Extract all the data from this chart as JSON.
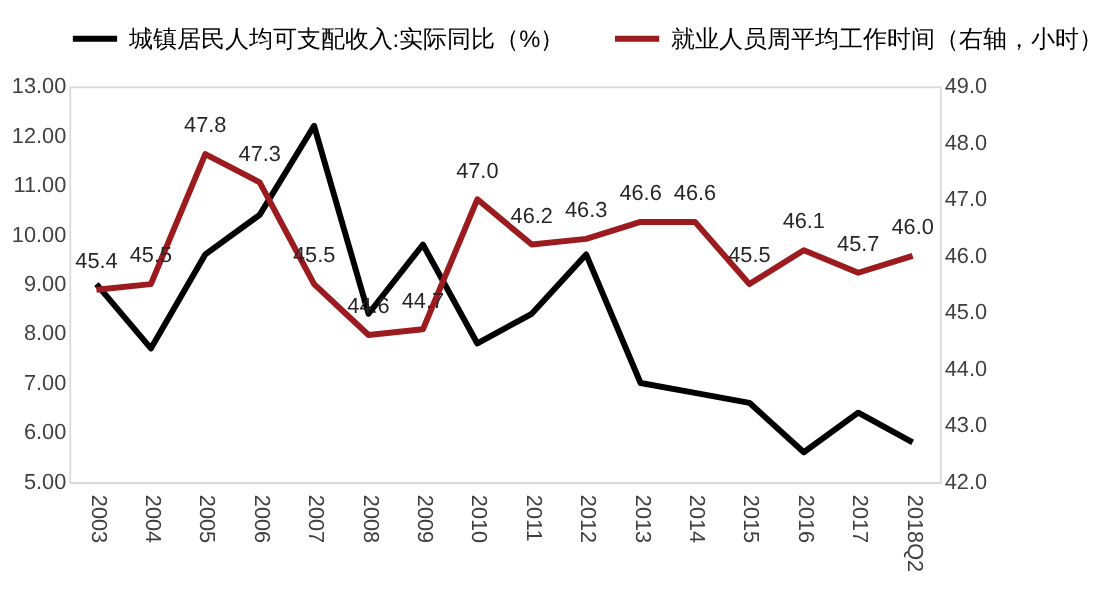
{
  "chart_data": {
    "type": "line",
    "categories": [
      "2003",
      "2004",
      "2005",
      "2006",
      "2007",
      "2008",
      "2009",
      "2010",
      "2011",
      "2012",
      "2013",
      "2014",
      "2015",
      "2016",
      "2017",
      "2018Q2"
    ],
    "series": [
      {
        "name": "城镇居民人均可支配收入:实际同比（%）",
        "color": "#000000",
        "values": [
          9.0,
          7.7,
          9.6,
          10.4,
          12.2,
          8.4,
          9.8,
          7.8,
          8.4,
          9.6,
          7.0,
          6.8,
          6.6,
          5.6,
          6.4,
          5.8
        ]
      },
      {
        "name": "就业人员周平均工作时间（右轴，小时）",
        "color": "#9b1b1e",
        "axis": "y2",
        "values": [
          45.4,
          45.5,
          47.8,
          47.3,
          45.5,
          44.6,
          44.7,
          47.0,
          46.2,
          46.3,
          46.6,
          46.6,
          45.5,
          46.1,
          45.7,
          46.0
        ],
        "value_labels": [
          "45.4",
          "45.5",
          "47.8",
          "47.3",
          "45.5",
          "44.6",
          "44.7",
          "47.0",
          "46.2",
          "46.3",
          "46.6",
          "46.6",
          "45.5",
          "46.1",
          "45.7",
          "46.0"
        ]
      }
    ],
    "ylim": [
      5,
      13
    ],
    "yticks": [
      {
        "value": 5,
        "label": "5.00"
      },
      {
        "value": 6,
        "label": "6.00"
      },
      {
        "value": 7,
        "label": "7.00"
      },
      {
        "value": 8,
        "label": "8.00"
      },
      {
        "value": 9,
        "label": "9.00"
      },
      {
        "value": 10,
        "label": "10.00"
      },
      {
        "value": 11,
        "label": "11.00"
      },
      {
        "value": 12,
        "label": "12.00"
      },
      {
        "value": 13,
        "label": "13.00"
      }
    ],
    "y2lim": [
      42,
      49
    ],
    "y2ticks": [
      {
        "value": 42,
        "label": "42.0"
      },
      {
        "value": 43,
        "label": "43.0"
      },
      {
        "value": 44,
        "label": "44.0"
      },
      {
        "value": 45,
        "label": "45.0"
      },
      {
        "value": 46,
        "label": "46.0"
      },
      {
        "value": 47,
        "label": "47.0"
      },
      {
        "value": 48,
        "label": "48.0"
      },
      {
        "value": 49,
        "label": "49.0"
      }
    ],
    "grid": false,
    "legend": "top",
    "marker": "none",
    "line_style": "solid"
  }
}
